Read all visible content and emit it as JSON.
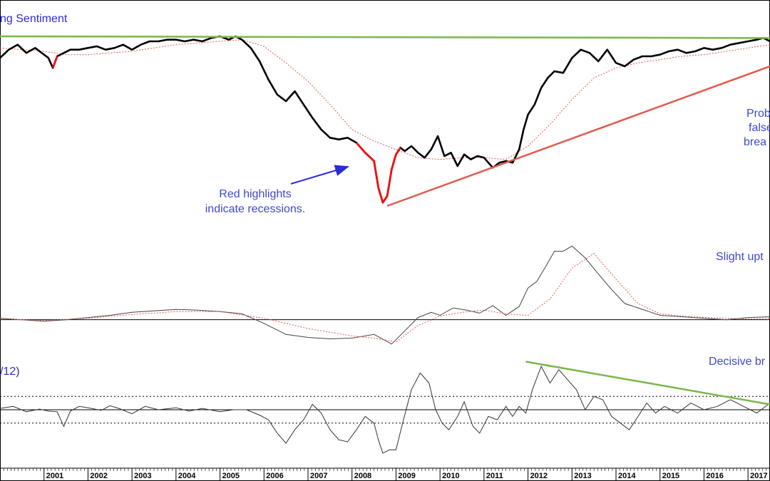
{
  "chart_data": [
    {
      "type": "line",
      "title": "ng Sentiment",
      "series": [
        {
          "name": "",
          "x": [
            2000.0,
            2000.2,
            2000.4,
            2000.6,
            2000.8,
            2000.95,
            2001.1,
            2001.2,
            2001.3,
            2001.45,
            2001.6,
            2001.8,
            2002.0,
            2002.2,
            2002.4,
            2002.6,
            2002.8,
            2003.0,
            2003.2,
            2003.4,
            2003.6,
            2003.8,
            2004.0,
            2004.2,
            2004.4,
            2004.6,
            2004.8,
            2005.0,
            2005.2,
            2005.35,
            2005.5,
            2005.7,
            2005.9,
            2006.1,
            2006.3,
            2006.5,
            2006.7,
            2006.9,
            2007.1,
            2007.3,
            2007.5,
            2007.7,
            2007.9,
            2008.1,
            2008.3,
            2008.5,
            2008.6,
            2008.7,
            2008.8,
            2008.9,
            2009.0,
            2009.1,
            2009.2,
            2009.35,
            2009.5,
            2009.65,
            2009.8,
            2009.95,
            2010.1,
            2010.25,
            2010.4,
            2010.55,
            2010.7,
            2010.85,
            2011.0,
            2011.2,
            2011.35,
            2011.5,
            2011.65,
            2011.8,
            2011.9,
            2012.0,
            2012.15,
            2012.3,
            2012.45,
            2012.6,
            2012.8,
            2013.0,
            2013.2,
            2013.4,
            2013.6,
            2013.8,
            2014.0,
            2014.2,
            2014.4,
            2014.6,
            2014.8,
            2015.0,
            2015.2,
            2015.4,
            2015.6,
            2015.8,
            2016.0,
            2016.2,
            2016.4,
            2016.6,
            2016.8,
            2017.0,
            2017.2,
            2017.35,
            2017.5
          ],
          "values": [
            98,
            103,
            106,
            101,
            104,
            101,
            98,
            92,
            99,
            101,
            103,
            103,
            104,
            105,
            103,
            104,
            106,
            103,
            106,
            108,
            108,
            109,
            109,
            108,
            109,
            108,
            110,
            111,
            109,
            111,
            109,
            104,
            96,
            85,
            76,
            72,
            78,
            70,
            62,
            55,
            50,
            49,
            50,
            47,
            41,
            36,
            20,
            11,
            15,
            31,
            40,
            44,
            42,
            45,
            41,
            38,
            43,
            51,
            39,
            41,
            33,
            40,
            37,
            39,
            38,
            32,
            35,
            36,
            35,
            43,
            55,
            64,
            70,
            80,
            86,
            90,
            89,
            98,
            103,
            101,
            96,
            103,
            95,
            93,
            97,
            99,
            99,
            100,
            102,
            103,
            101,
            102,
            104,
            103,
            104,
            106,
            107,
            108,
            109,
            110,
            108
          ],
          "recession_ranges": [
            [
              2001.2,
              2001.35
            ],
            [
              2007.95,
              2009.1
            ]
          ]
        },
        {
          "name": "",
          "dashed": true,
          "x": [
            2000.0,
            2000.5,
            2001.0,
            2001.5,
            2002.0,
            2002.5,
            2003.0,
            2003.5,
            2004.0,
            2004.5,
            2005.0,
            2005.5,
            2006.0,
            2006.5,
            2007.0,
            2007.5,
            2008.0,
            2008.5,
            2009.0,
            2009.5,
            2010.0,
            2010.5,
            2011.0,
            2011.5,
            2012.0,
            2012.5,
            2013.0,
            2013.5,
            2014.0,
            2014.5,
            2015.0,
            2015.5,
            2016.0,
            2016.5,
            2017.0,
            2017.5
          ],
          "values": [
            104,
            103,
            102,
            100,
            100,
            101,
            102,
            104,
            106,
            107,
            108,
            109,
            105,
            95,
            84,
            70,
            55,
            48,
            43,
            38,
            37,
            38,
            38,
            37,
            45,
            58,
            73,
            86,
            92,
            95,
            97,
            99,
            100,
            102,
            104,
            106
          ]
        }
      ],
      "trendlines": [
        {
          "color": "#7ab648",
          "x": [
            2000.0,
            2017.5
          ],
          "values": [
            111,
            110
          ]
        },
        {
          "color": "#e05a4e",
          "x": [
            2008.8,
            2017.5
          ],
          "values": [
            9,
            93
          ]
        }
      ],
      "ylim": [
        0,
        120
      ]
    },
    {
      "type": "line",
      "series": [
        {
          "name": "",
          "x": [
            2000.0,
            2000.5,
            2001.0,
            2001.5,
            2002.0,
            2002.5,
            2003.0,
            2003.5,
            2004.0,
            2004.5,
            2005.0,
            2005.5,
            2006.0,
            2006.5,
            2007.0,
            2007.5,
            2008.0,
            2008.5,
            2008.9,
            2009.2,
            2009.5,
            2009.8,
            2010.0,
            2010.3,
            2010.6,
            2010.9,
            2011.2,
            2011.5,
            2011.8,
            2012.0,
            2012.2,
            2012.4,
            2012.6,
            2012.8,
            2013.0,
            2013.3,
            2013.6,
            2013.9,
            2014.2,
            2014.5,
            2014.8,
            2015.0,
            2015.5,
            2016.0,
            2016.5,
            2017.0,
            2017.5
          ],
          "values": [
            2,
            0,
            -2,
            0,
            3,
            6,
            10,
            12,
            14,
            13,
            11,
            8,
            -5,
            -20,
            -24,
            -26,
            -25,
            -20,
            -33,
            -15,
            3,
            10,
            6,
            16,
            13,
            9,
            19,
            6,
            18,
            43,
            52,
            72,
            93,
            93,
            100,
            84,
            62,
            41,
            22,
            16,
            10,
            6,
            4,
            2,
            0,
            3,
            4
          ]
        },
        {
          "name": "",
          "dashed": true,
          "x": [
            2000.0,
            2001.0,
            2002.0,
            2003.0,
            2004.0,
            2005.0,
            2006.0,
            2007.0,
            2008.0,
            2008.5,
            2009.0,
            2009.5,
            2010.0,
            2010.5,
            2011.0,
            2011.5,
            2012.0,
            2012.5,
            2013.0,
            2013.5,
            2014.0,
            2014.5,
            2015.0,
            2015.5,
            2016.0,
            2016.5,
            2017.0,
            2017.5
          ],
          "values": [
            1,
            -1,
            2,
            7,
            11,
            11,
            2,
            -12,
            -22,
            -25,
            -30,
            -8,
            5,
            10,
            13,
            8,
            6,
            28,
            70,
            90,
            55,
            22,
            8,
            5,
            3,
            2,
            1,
            2
          ]
        }
      ],
      "ylim": [
        -40,
        110
      ]
    },
    {
      "type": "line",
      "title": "/12)",
      "series": [
        {
          "name": "",
          "x": [
            2000.0,
            2000.3,
            2000.6,
            2000.9,
            2001.1,
            2001.3,
            2001.45,
            2001.6,
            2001.8,
            2002.0,
            2002.3,
            2002.5,
            2002.7,
            2003.0,
            2003.3,
            2003.6,
            2004.0,
            2004.3,
            2004.6,
            2005.0,
            2005.3,
            2005.6,
            2005.9,
            2006.1,
            2006.3,
            2006.5,
            2006.7,
            2006.9,
            2007.1,
            2007.3,
            2007.5,
            2007.7,
            2007.9,
            2008.1,
            2008.3,
            2008.5,
            2008.6,
            2008.7,
            2008.85,
            2009.0,
            2009.15,
            2009.35,
            2009.55,
            2009.75,
            2009.9,
            2010.05,
            2010.2,
            2010.4,
            2010.55,
            2010.75,
            2010.9,
            2011.1,
            2011.3,
            2011.5,
            2011.65,
            2011.8,
            2011.95,
            2012.1,
            2012.3,
            2012.5,
            2012.7,
            2012.9,
            2013.1,
            2013.3,
            2013.5,
            2013.7,
            2013.9,
            2014.1,
            2014.3,
            2014.5,
            2014.7,
            2014.9,
            2015.1,
            2015.4,
            2015.7,
            2016.0,
            2016.3,
            2016.6,
            2016.9,
            2017.2,
            2017.5
          ],
          "values": [
            2,
            5,
            -3,
            1,
            -2,
            -3,
            -25,
            -2,
            5,
            3,
            -1,
            6,
            2,
            -6,
            5,
            0,
            3,
            -2,
            2,
            -3,
            0,
            0,
            -8,
            -15,
            -35,
            -50,
            -30,
            -15,
            8,
            -5,
            -30,
            -45,
            -48,
            -30,
            -10,
            -20,
            -45,
            -65,
            -60,
            -60,
            -20,
            30,
            55,
            40,
            0,
            -20,
            -30,
            -10,
            12,
            -25,
            -35,
            -10,
            -15,
            5,
            -10,
            5,
            -5,
            30,
            65,
            40,
            60,
            45,
            30,
            0,
            20,
            15,
            -10,
            -20,
            -30,
            -10,
            10,
            -5,
            5,
            -5,
            10,
            0,
            5,
            15,
            5,
            -5,
            10
          ]
        }
      ],
      "trendlines": [
        {
          "color": "#7ab648",
          "x": [
            2011.95,
            2017.5
          ],
          "values": [
            72,
            8
          ]
        }
      ],
      "reference_lines": [
        {
          "value": 0,
          "style": "solid"
        },
        {
          "value": 20,
          "style": "dotted"
        },
        {
          "value": -20,
          "style": "dotted"
        }
      ],
      "ylim": [
        -80,
        80
      ]
    }
  ],
  "x_axis": {
    "ticks": [
      "2001",
      "2002",
      "2003",
      "2004",
      "2005",
      "2006",
      "2007",
      "2008",
      "2009",
      "2010",
      "2011",
      "2012",
      "2013",
      "2014",
      "2015",
      "2016",
      "2017"
    ],
    "tick_values": [
      2001,
      2002,
      2003,
      2004,
      2005,
      2006,
      2007,
      2008,
      2009,
      2010,
      2011,
      2012,
      2013,
      2014,
      2015,
      2016,
      2017
    ],
    "xlim": [
      2000.0,
      2017.5
    ]
  },
  "annotations": {
    "recession_line1": "Red highlights",
    "recession_line2": "indicate recessions.",
    "prob_line1": "Prob",
    "prob_line2": "false",
    "prob_line3": "brea",
    "slight": "Slight upt",
    "decisive": "Decisive br"
  },
  "colors": {
    "main_line": "#000000",
    "recession": "#ee1111",
    "moving_average": "#e05a4e",
    "green_trend": "#7ab648",
    "red_trend": "#e05a4e",
    "annotation_text": "#3f48cc",
    "arrow": "#2b2bd6"
  }
}
